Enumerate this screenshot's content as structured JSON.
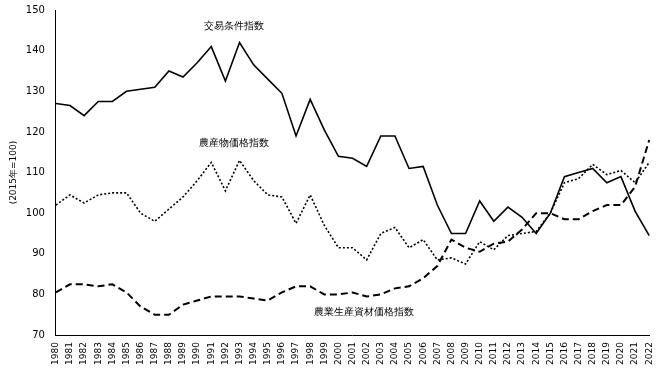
{
  "chart_data": {
    "type": "line",
    "y_label": "(2015年=100)",
    "categories": [
      "1980",
      "1981",
      "1982",
      "1983",
      "1984",
      "1985",
      "1986",
      "1987",
      "1988",
      "1989",
      "1990",
      "1991",
      "1992",
      "1993",
      "1994",
      "1995",
      "1996",
      "1997",
      "1998",
      "1999",
      "2000",
      "2001",
      "2002",
      "2003",
      "2004",
      "2005",
      "2006",
      "2007",
      "2008",
      "2009",
      "2010",
      "2011",
      "2012",
      "2013",
      "2014",
      "2015",
      "2016",
      "2017",
      "2018",
      "2019",
      "2020",
      "2021",
      "2022"
    ],
    "series": [
      {
        "name": "交易条件指数",
        "color": "#000000",
        "line_style": "solid",
        "values": [
          127,
          126.5,
          124,
          127.5,
          127.5,
          130,
          130.5,
          131,
          135,
          133.5,
          137,
          141,
          132.5,
          142,
          136.5,
          133,
          129.5,
          119,
          128,
          120.5,
          114,
          113.5,
          111.5,
          119,
          119,
          111,
          111.5,
          102,
          95,
          95,
          103,
          98,
          101.5,
          99,
          95,
          100,
          109,
          110,
          111,
          107.5,
          109,
          100.5,
          94.5
        ]
      },
      {
        "name": "農産物価格指数",
        "color": "#000000",
        "line_style": "dotted",
        "values": [
          102,
          104.5,
          102.5,
          104.5,
          105,
          105,
          100,
          98,
          101,
          104,
          108,
          112.5,
          105.5,
          113,
          108,
          104.5,
          104,
          97.5,
          104.5,
          97,
          91.5,
          91.5,
          88.5,
          95,
          96.5,
          91.5,
          93.5,
          88.5,
          89,
          87.5,
          93,
          91,
          94.5,
          95,
          95.5,
          100,
          107.5,
          108.5,
          112,
          109.5,
          110.5,
          107.5,
          112.5
        ]
      },
      {
        "name": "農業生産資材価格指数",
        "color": "#000000",
        "line_style": "dashed",
        "values": [
          80.5,
          82.5,
          82.5,
          82,
          82.5,
          80.5,
          77,
          75,
          75,
          77.5,
          78.5,
          79.5,
          79.5,
          79.5,
          79,
          78.5,
          80.5,
          82,
          82,
          80,
          80,
          80.5,
          79.5,
          80,
          81.5,
          82,
          84,
          87,
          93.5,
          91.5,
          90.5,
          92.5,
          93,
          96,
          100,
          100,
          98.5,
          98.5,
          100.5,
          102,
          102,
          106.5,
          118
        ]
      }
    ],
    "ylim": [
      70,
      150
    ],
    "yticks": [
      70,
      80,
      90,
      100,
      110,
      120,
      130,
      140,
      150
    ],
    "grid": false,
    "legend": "none"
  }
}
